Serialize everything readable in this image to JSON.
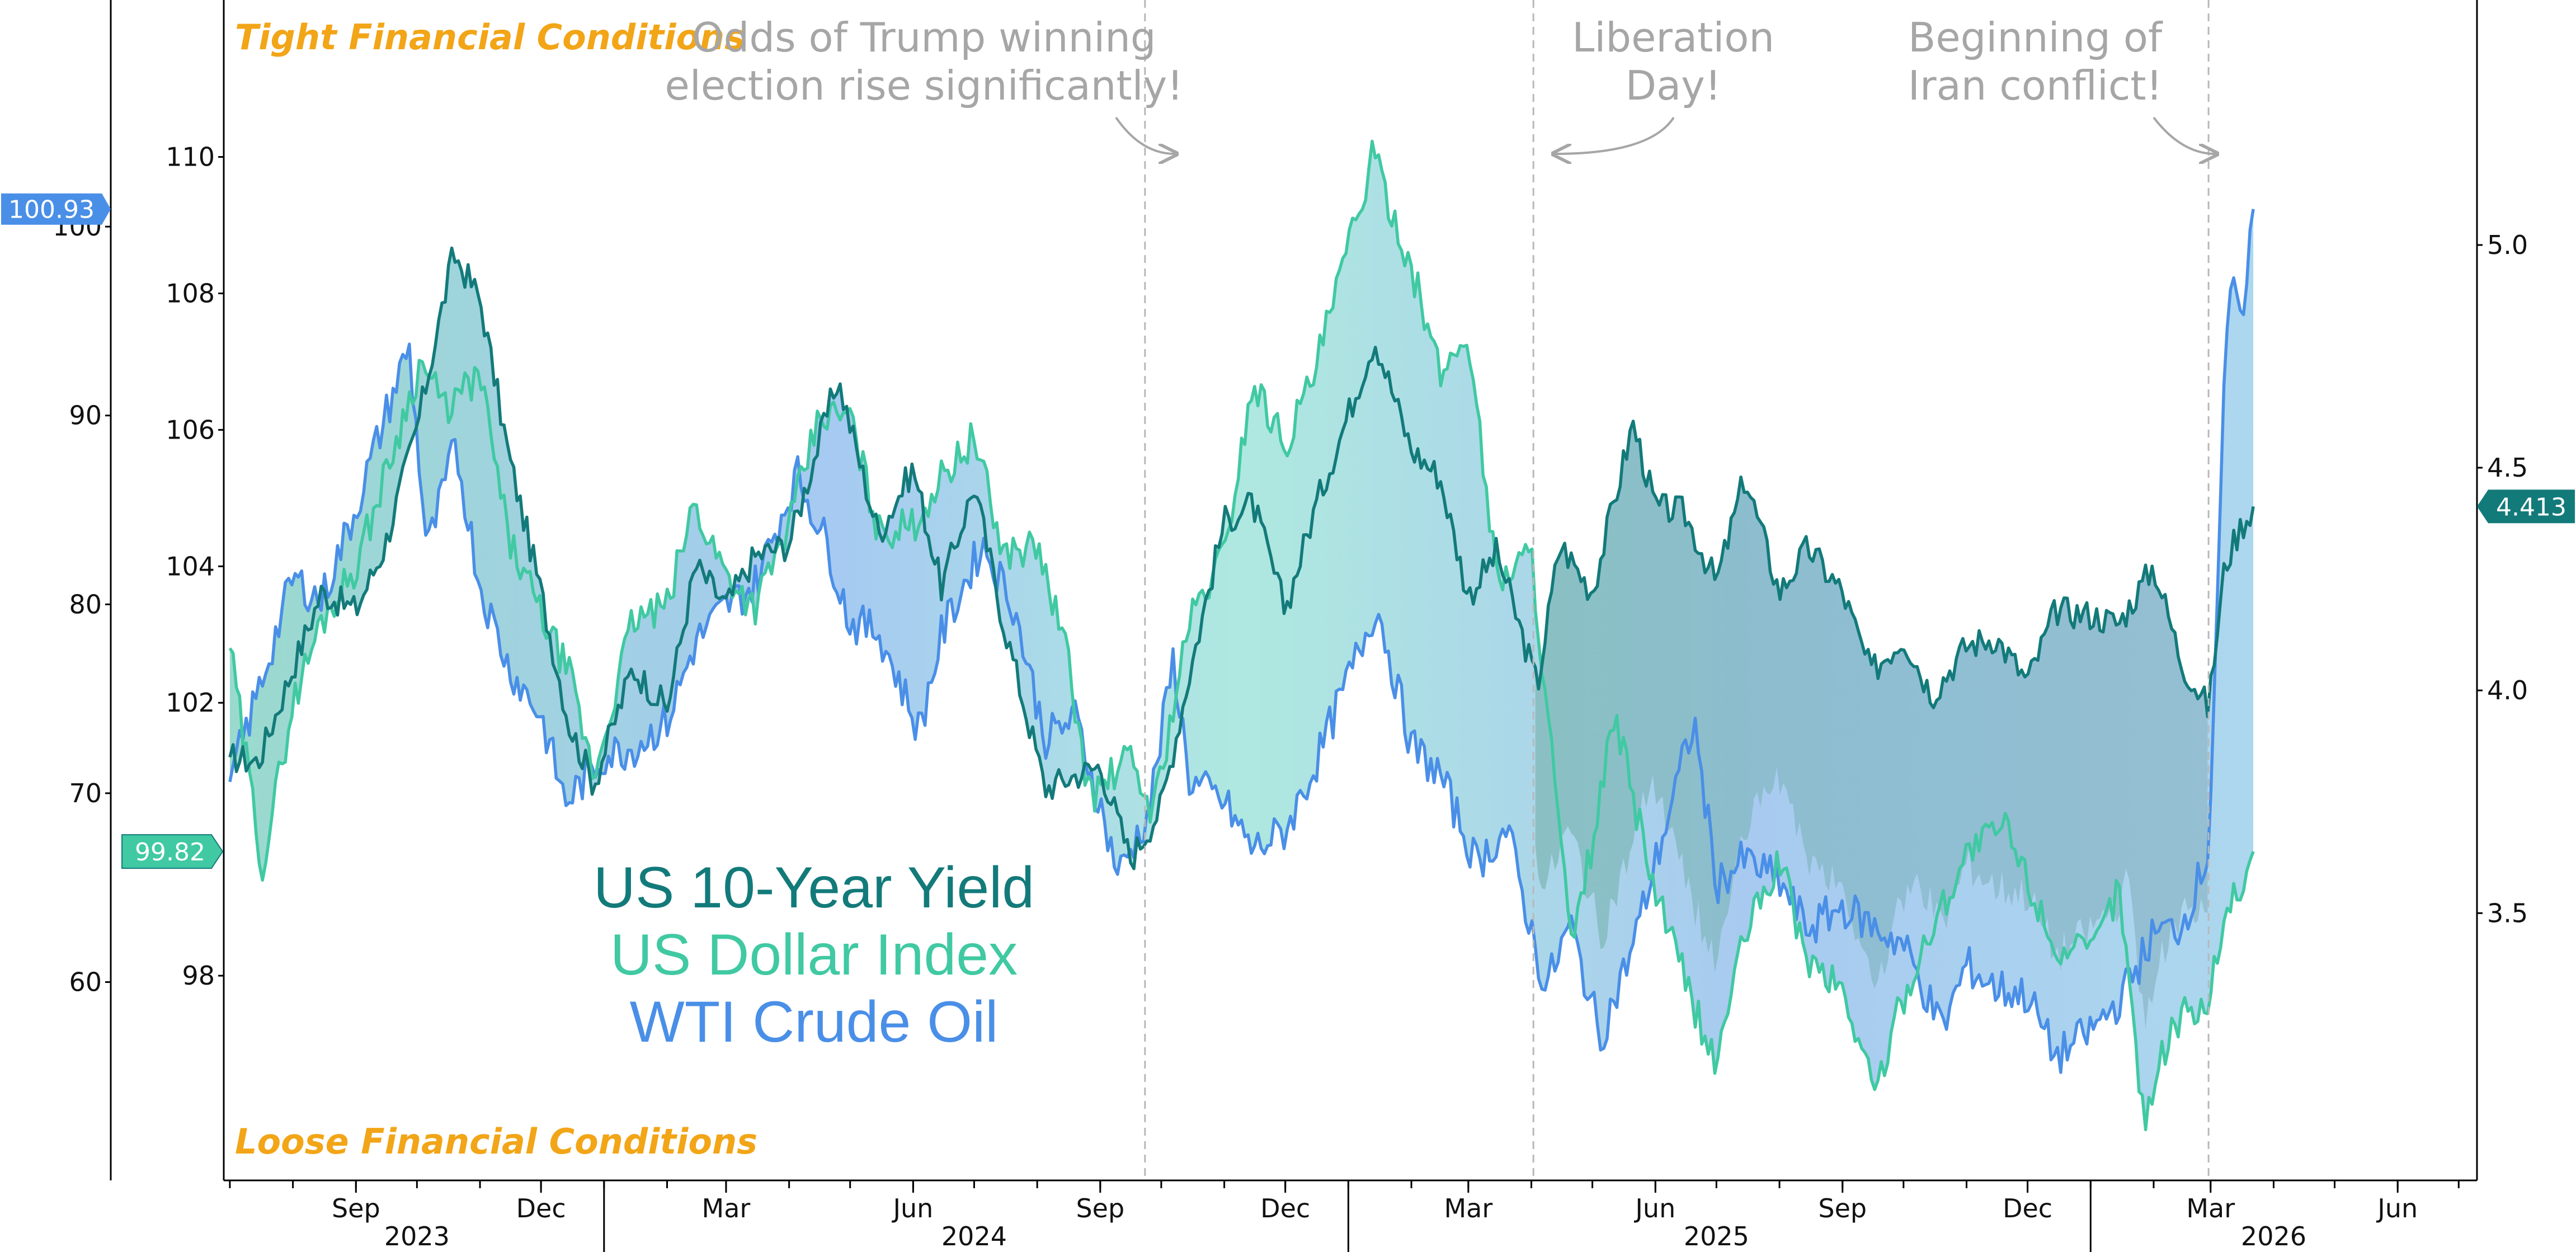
{
  "chart_data": {
    "type": "line",
    "notes": {
      "tight": "Tight Financial Conditions",
      "loose": "Loose Financial Conditions"
    },
    "annotations": [
      {
        "lines": [
          "Odds of Trump winning",
          "election rise significantly!"
        ],
        "date": "2024-09-23"
      },
      {
        "lines": [
          "Liberation",
          "Day!"
        ],
        "date": "2025-04-02"
      },
      {
        "lines": [
          "Beginning of",
          "Iran conflict!"
        ],
        "date": "2026-02-28"
      }
    ],
    "legend": [
      "US 10-Year Yield",
      "US Dollar Index",
      "WTI Crude Oil"
    ],
    "colors": {
      "yield": "#137a7a",
      "dxy": "#40c9a2",
      "oil": "#4a8fe7",
      "accent": "#f2a517",
      "annotation": "#a6a6a6"
    },
    "x_axis": {
      "range": [
        "2023-06-28",
        "2026-07-10"
      ],
      "month_ticks": [
        {
          "label": "Sep",
          "date": "2023-09-01"
        },
        {
          "label": "Dec",
          "date": "2023-12-01"
        },
        {
          "label": "Mar",
          "date": "2024-03-01"
        },
        {
          "label": "Jun",
          "date": "2024-06-01"
        },
        {
          "label": "Sep",
          "date": "2024-09-01"
        },
        {
          "label": "Dec",
          "date": "2024-12-01"
        },
        {
          "label": "Mar",
          "date": "2025-03-01"
        },
        {
          "label": "Jun",
          "date": "2025-06-01"
        },
        {
          "label": "Sep",
          "date": "2025-09-01"
        },
        {
          "label": "Dec",
          "date": "2025-12-01"
        },
        {
          "label": "Mar",
          "date": "2026-03-01"
        },
        {
          "label": "Jun",
          "date": "2026-06-01"
        }
      ],
      "year_labels": [
        {
          "label": "2023",
          "date": "2023-10-01"
        },
        {
          "label": "2024",
          "date": "2024-07-01"
        },
        {
          "label": "2025",
          "date": "2025-07-01"
        },
        {
          "label": "2026",
          "date": "2026-04-01"
        }
      ]
    },
    "axes": {
      "oil": {
        "name": "WTI Crude Oil",
        "side": "far-left",
        "min": 49.5,
        "max": 112,
        "ticks": [
          60,
          70,
          80,
          90,
          100
        ]
      },
      "dxy": {
        "name": "US Dollar Index",
        "side": "left",
        "min": 95,
        "max": 112.3,
        "ticks": [
          98,
          102,
          104,
          106,
          108,
          110
        ]
      },
      "yield": {
        "name": "US 10-Year Yield",
        "side": "right",
        "min": 2.9,
        "max": 5.55,
        "ticks": [
          3.5,
          4.0,
          4.5,
          5.0
        ]
      }
    },
    "last_value_tags": {
      "oil": "100.93",
      "dxy": "99.82",
      "yield": "4.413"
    },
    "series": [
      {
        "name": "US 10-Year Yield",
        "axis": "yield",
        "points": [
          [
            "2023-07-01",
            3.85
          ],
          [
            "2023-07-15",
            3.84
          ],
          [
            "2023-08-01",
            4.05
          ],
          [
            "2023-08-15",
            4.22
          ],
          [
            "2023-09-01",
            4.18
          ],
          [
            "2023-09-15",
            4.32
          ],
          [
            "2023-10-01",
            4.59
          ],
          [
            "2023-10-19",
            4.98
          ],
          [
            "2023-11-01",
            4.88
          ],
          [
            "2023-11-15",
            4.53
          ],
          [
            "2023-12-01",
            4.22
          ],
          [
            "2023-12-15",
            3.92
          ],
          [
            "2023-12-27",
            3.79
          ],
          [
            "2024-01-15",
            4.05
          ],
          [
            "2024-02-01",
            3.96
          ],
          [
            "2024-02-15",
            4.28
          ],
          [
            "2024-03-01",
            4.19
          ],
          [
            "2024-03-15",
            4.3
          ],
          [
            "2024-04-01",
            4.33
          ],
          [
            "2024-04-25",
            4.7
          ],
          [
            "2024-05-15",
            4.35
          ],
          [
            "2024-06-01",
            4.5
          ],
          [
            "2024-06-15",
            4.23
          ],
          [
            "2024-07-01",
            4.46
          ],
          [
            "2024-07-15",
            4.16
          ],
          [
            "2024-08-05",
            3.78
          ],
          [
            "2024-08-20",
            3.81
          ],
          [
            "2024-09-01",
            3.83
          ],
          [
            "2024-09-16",
            3.62
          ],
          [
            "2024-10-01",
            3.74
          ],
          [
            "2024-10-15",
            4.04
          ],
          [
            "2024-11-01",
            4.38
          ],
          [
            "2024-11-15",
            4.42
          ],
          [
            "2024-12-01",
            4.18
          ],
          [
            "2024-12-15",
            4.4
          ],
          [
            "2025-01-14",
            4.79
          ],
          [
            "2025-02-01",
            4.54
          ],
          [
            "2025-02-15",
            4.48
          ],
          [
            "2025-03-01",
            4.21
          ],
          [
            "2025-03-15",
            4.31
          ],
          [
            "2025-04-04",
            4.01
          ],
          [
            "2025-04-15",
            4.33
          ],
          [
            "2025-05-01",
            4.22
          ],
          [
            "2025-05-21",
            4.6
          ],
          [
            "2025-06-01",
            4.41
          ],
          [
            "2025-06-15",
            4.4
          ],
          [
            "2025-07-01",
            4.24
          ],
          [
            "2025-07-15",
            4.48
          ],
          [
            "2025-08-01",
            4.22
          ],
          [
            "2025-08-15",
            4.32
          ],
          [
            "2025-09-01",
            4.22
          ],
          [
            "2025-09-15",
            4.04
          ],
          [
            "2025-10-01",
            4.12
          ],
          [
            "2025-10-15",
            3.99
          ],
          [
            "2025-11-01",
            4.1
          ],
          [
            "2025-11-15",
            4.12
          ],
          [
            "2025-12-01",
            4.02
          ],
          [
            "2025-12-15",
            4.18
          ],
          [
            "2026-01-01",
            4.17
          ],
          [
            "2026-01-15",
            4.15
          ],
          [
            "2026-02-01",
            4.28
          ],
          [
            "2026-02-15",
            4.06
          ],
          [
            "2026-02-28",
            3.96
          ],
          [
            "2026-03-08",
            4.28
          ],
          [
            "2026-03-15",
            4.36
          ],
          [
            "2026-03-22",
            4.413
          ]
        ]
      },
      {
        "name": "US Dollar Index",
        "axis": "dxy",
        "points": [
          [
            "2023-07-01",
            102.8
          ],
          [
            "2023-07-17",
            99.6
          ],
          [
            "2023-08-01",
            102.0
          ],
          [
            "2023-08-15",
            103.2
          ],
          [
            "2023-09-01",
            104.0
          ],
          [
            "2023-09-15",
            105.3
          ],
          [
            "2023-10-03",
            107.0
          ],
          [
            "2023-10-15",
            106.3
          ],
          [
            "2023-11-01",
            106.8
          ],
          [
            "2023-11-15",
            104.4
          ],
          [
            "2023-12-01",
            103.3
          ],
          [
            "2023-12-15",
            102.4
          ],
          [
            "2023-12-27",
            100.9
          ],
          [
            "2024-01-15",
            103.2
          ],
          [
            "2024-02-01",
            103.4
          ],
          [
            "2024-02-14",
            104.9
          ],
          [
            "2024-03-01",
            103.9
          ],
          [
            "2024-03-15",
            103.4
          ],
          [
            "2024-04-01",
            104.6
          ],
          [
            "2024-04-16",
            106.2
          ],
          [
            "2024-05-01",
            106.2
          ],
          [
            "2024-05-15",
            104.5
          ],
          [
            "2024-06-01",
            104.6
          ],
          [
            "2024-06-15",
            105.3
          ],
          [
            "2024-07-01",
            105.9
          ],
          [
            "2024-07-15",
            104.2
          ],
          [
            "2024-08-01",
            104.3
          ],
          [
            "2024-08-15",
            102.8
          ],
          [
            "2024-08-27",
            100.6
          ],
          [
            "2024-09-15",
            101.2
          ],
          [
            "2024-09-27",
            100.4
          ],
          [
            "2024-10-15",
            103.2
          ],
          [
            "2024-11-01",
            104.2
          ],
          [
            "2024-11-15",
            106.7
          ],
          [
            "2024-12-01",
            105.8
          ],
          [
            "2024-12-15",
            106.8
          ],
          [
            "2025-01-13",
            110.0
          ],
          [
            "2025-02-01",
            108.4
          ],
          [
            "2025-02-15",
            106.8
          ],
          [
            "2025-03-01",
            107.4
          ],
          [
            "2025-03-15",
            103.8
          ],
          [
            "2025-04-01",
            104.2
          ],
          [
            "2025-04-21",
            98.3
          ],
          [
            "2025-05-12",
            101.8
          ],
          [
            "2025-06-01",
            99.2
          ],
          [
            "2025-06-30",
            96.7
          ],
          [
            "2025-07-15",
            98.6
          ],
          [
            "2025-08-01",
            99.7
          ],
          [
            "2025-08-15",
            98.2
          ],
          [
            "2025-09-01",
            97.8
          ],
          [
            "2025-09-17",
            96.3
          ],
          [
            "2025-10-01",
            97.7
          ],
          [
            "2025-10-15",
            98.7
          ],
          [
            "2025-11-01",
            99.8
          ],
          [
            "2025-11-20",
            100.2
          ],
          [
            "2025-12-01",
            99.4
          ],
          [
            "2025-12-15",
            98.4
          ],
          [
            "2026-01-01",
            98.3
          ],
          [
            "2026-01-15",
            99.3
          ],
          [
            "2026-01-27",
            95.9
          ],
          [
            "2026-02-10",
            97.3
          ],
          [
            "2026-02-28",
            97.6
          ],
          [
            "2026-03-08",
            99.0
          ],
          [
            "2026-03-15",
            99.2
          ],
          [
            "2026-03-22",
            99.82
          ]
        ]
      },
      {
        "name": "WTI Crude Oil",
        "axis": "oil",
        "points": [
          [
            "2023-07-01",
            70.6
          ],
          [
            "2023-07-15",
            75.4
          ],
          [
            "2023-08-01",
            81.4
          ],
          [
            "2023-08-15",
            80.2
          ],
          [
            "2023-09-01",
            85.1
          ],
          [
            "2023-09-15",
            89.8
          ],
          [
            "2023-09-27",
            93.7
          ],
          [
            "2023-10-06",
            82.8
          ],
          [
            "2023-10-20",
            88.4
          ],
          [
            "2023-11-01",
            81.0
          ],
          [
            "2023-11-15",
            76.7
          ],
          [
            "2023-12-01",
            74.1
          ],
          [
            "2023-12-13",
            69.5
          ],
          [
            "2024-01-01",
            72.0
          ],
          [
            "2024-01-15",
            72.4
          ],
          [
            "2024-02-01",
            73.8
          ],
          [
            "2024-02-15",
            78.0
          ],
          [
            "2024-03-01",
            79.9
          ],
          [
            "2024-03-15",
            81.0
          ],
          [
            "2024-04-05",
            86.9
          ],
          [
            "2024-04-20",
            83.1
          ],
          [
            "2024-05-01",
            79.0
          ],
          [
            "2024-05-15",
            78.6
          ],
          [
            "2024-06-04",
            73.3
          ],
          [
            "2024-06-15",
            78.4
          ],
          [
            "2024-07-05",
            83.2
          ],
          [
            "2024-07-20",
            80.1
          ],
          [
            "2024-08-05",
            72.9
          ],
          [
            "2024-08-20",
            74.0
          ],
          [
            "2024-09-10",
            65.7
          ],
          [
            "2024-09-25",
            69.0
          ],
          [
            "2024-10-07",
            77.1
          ],
          [
            "2024-10-15",
            70.6
          ],
          [
            "2024-11-01",
            69.5
          ],
          [
            "2024-11-15",
            67.0
          ],
          [
            "2024-12-01",
            68.0
          ],
          [
            "2024-12-15",
            71.3
          ],
          [
            "2025-01-15",
            80.0
          ],
          [
            "2025-02-01",
            72.5
          ],
          [
            "2025-02-15",
            71.0
          ],
          [
            "2025-03-05",
            66.3
          ],
          [
            "2025-03-20",
            68.1
          ],
          [
            "2025-04-08",
            59.6
          ],
          [
            "2025-04-20",
            63.1
          ],
          [
            "2025-05-05",
            57.1
          ],
          [
            "2025-05-20",
            61.6
          ],
          [
            "2025-06-20",
            73.8
          ],
          [
            "2025-07-01",
            65.2
          ],
          [
            "2025-07-15",
            66.5
          ],
          [
            "2025-08-01",
            65.3
          ],
          [
            "2025-08-15",
            62.8
          ],
          [
            "2025-09-01",
            64.0
          ],
          [
            "2025-09-15",
            63.0
          ],
          [
            "2025-10-01",
            62.0
          ],
          [
            "2025-10-20",
            57.5
          ],
          [
            "2025-11-01",
            60.9
          ],
          [
            "2025-11-15",
            59.7
          ],
          [
            "2025-12-01",
            59.3
          ],
          [
            "2025-12-15",
            56.0
          ],
          [
            "2026-01-01",
            57.4
          ],
          [
            "2026-01-15",
            59.0
          ],
          [
            "2026-02-01",
            62.5
          ],
          [
            "2026-02-15",
            63.0
          ],
          [
            "2026-02-28",
            66.9
          ],
          [
            "2026-03-08",
            92.0
          ],
          [
            "2026-03-12",
            98.0
          ],
          [
            "2026-03-15",
            94.0
          ],
          [
            "2026-03-22",
            100.93
          ]
        ]
      }
    ]
  }
}
